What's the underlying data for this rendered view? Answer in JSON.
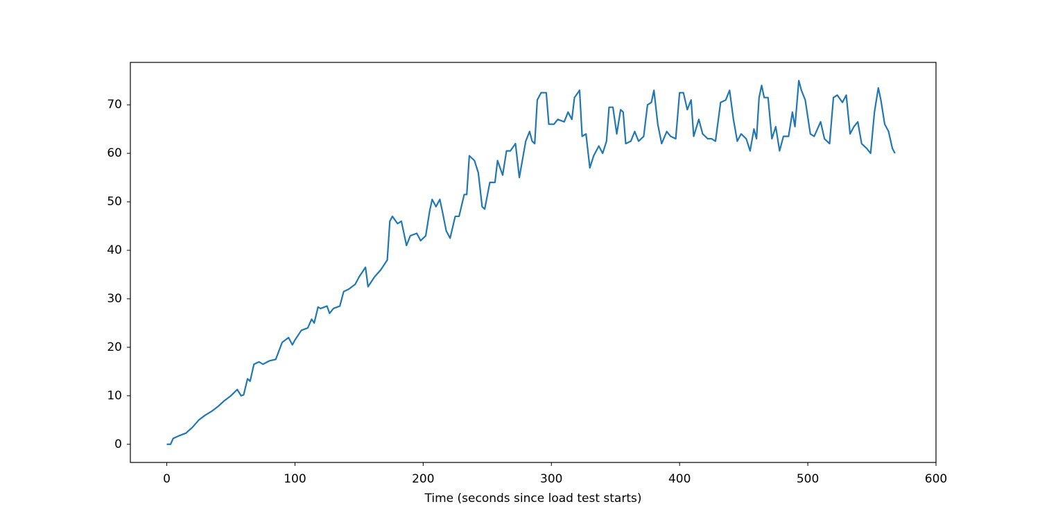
{
  "chart_data": {
    "type": "line",
    "xlabel": "Time (seconds since load test starts)",
    "x": [
      0,
      3,
      5,
      10,
      15,
      20,
      25,
      30,
      35,
      40,
      45,
      50,
      55,
      58,
      60,
      63,
      65,
      68,
      72,
      75,
      80,
      85,
      90,
      95,
      98,
      100,
      105,
      110,
      113,
      115,
      118,
      120,
      125,
      127,
      130,
      135,
      138,
      142,
      147,
      150,
      155,
      157,
      162,
      167,
      172,
      174,
      176,
      180,
      183,
      187,
      190,
      195,
      198,
      202,
      205,
      207,
      210,
      213,
      215,
      218,
      221,
      225,
      228,
      232,
      234,
      236,
      240,
      243,
      246,
      248,
      252,
      256,
      258,
      262,
      265,
      268,
      272,
      275,
      277,
      280,
      283,
      285,
      287,
      289,
      292,
      296,
      298,
      302,
      305,
      310,
      313,
      316,
      318,
      322,
      324,
      327,
      330,
      333,
      337,
      340,
      343,
      345,
      348,
      351,
      354,
      356,
      358,
      362,
      365,
      368,
      372,
      375,
      378,
      380,
      383,
      386,
      390,
      393,
      397,
      400,
      403,
      406,
      409,
      411,
      415,
      418,
      422,
      425,
      428,
      432,
      436,
      439,
      442,
      445,
      448,
      452,
      455,
      458,
      460,
      462,
      464,
      466,
      469,
      472,
      475,
      478,
      481,
      485,
      488,
      490,
      493,
      495,
      498,
      502,
      505,
      510,
      513,
      517,
      520,
      523,
      527,
      530,
      533,
      536,
      539,
      542,
      546,
      549,
      552,
      555,
      557,
      560,
      563,
      566,
      568
    ],
    "series": [
      {
        "color": "#1f77b4",
        "values": [
          0,
          0,
          1.2,
          1.8,
          2.3,
          3.5,
          5,
          6,
          6.8,
          7.8,
          9,
          10,
          11.3,
          10,
          10.2,
          13.5,
          13,
          16.5,
          17,
          16.5,
          17.2,
          17.5,
          21,
          22,
          20.5,
          21.5,
          23.5,
          24,
          25.8,
          25,
          28.3,
          28,
          28.5,
          27,
          28,
          28.5,
          31.5,
          32,
          33,
          34.5,
          36.5,
          32.5,
          34.5,
          36,
          38,
          46,
          47,
          45.5,
          46,
          41,
          43,
          43.5,
          42,
          43,
          48,
          50.5,
          49,
          50.5,
          48,
          44,
          42.5,
          47,
          47,
          51.5,
          51.5,
          59.5,
          58.5,
          56,
          49,
          48.5,
          54,
          54,
          58.5,
          55.5,
          60.5,
          60.5,
          62,
          55,
          58,
          62.5,
          64.5,
          62.5,
          62,
          71,
          72.5,
          72.5,
          66,
          66,
          67,
          66.5,
          68.5,
          67,
          71.5,
          73,
          63.5,
          64,
          57,
          59.5,
          61.5,
          60,
          62.5,
          69.5,
          69.5,
          64,
          69,
          68.5,
          62,
          62.5,
          64.5,
          62.5,
          63.5,
          70,
          70.5,
          73,
          66,
          62,
          64.5,
          63.5,
          63,
          72.5,
          72.5,
          69,
          71,
          63.5,
          67,
          64,
          63,
          63,
          62.5,
          70.5,
          71,
          73,
          67,
          62.5,
          64,
          63,
          60.5,
          65,
          63,
          71.5,
          74,
          71.5,
          71.5,
          63,
          65.5,
          60.5,
          63.5,
          63.5,
          68.5,
          65.5,
          75,
          73,
          71,
          64,
          63.5,
          66.5,
          63,
          62,
          71.5,
          72,
          70.5,
          72,
          64,
          65.5,
          66.5,
          62,
          61,
          60,
          68.5,
          73.5,
          71,
          66,
          64.5,
          61,
          60
        ]
      }
    ],
    "xlim": [
      -28.4,
      600
    ],
    "ylim": [
      -3.75,
      78.75
    ],
    "xticks": [
      0,
      100,
      200,
      300,
      400,
      500,
      600
    ],
    "yticks": [
      0,
      10,
      20,
      30,
      40,
      50,
      60,
      70
    ]
  }
}
